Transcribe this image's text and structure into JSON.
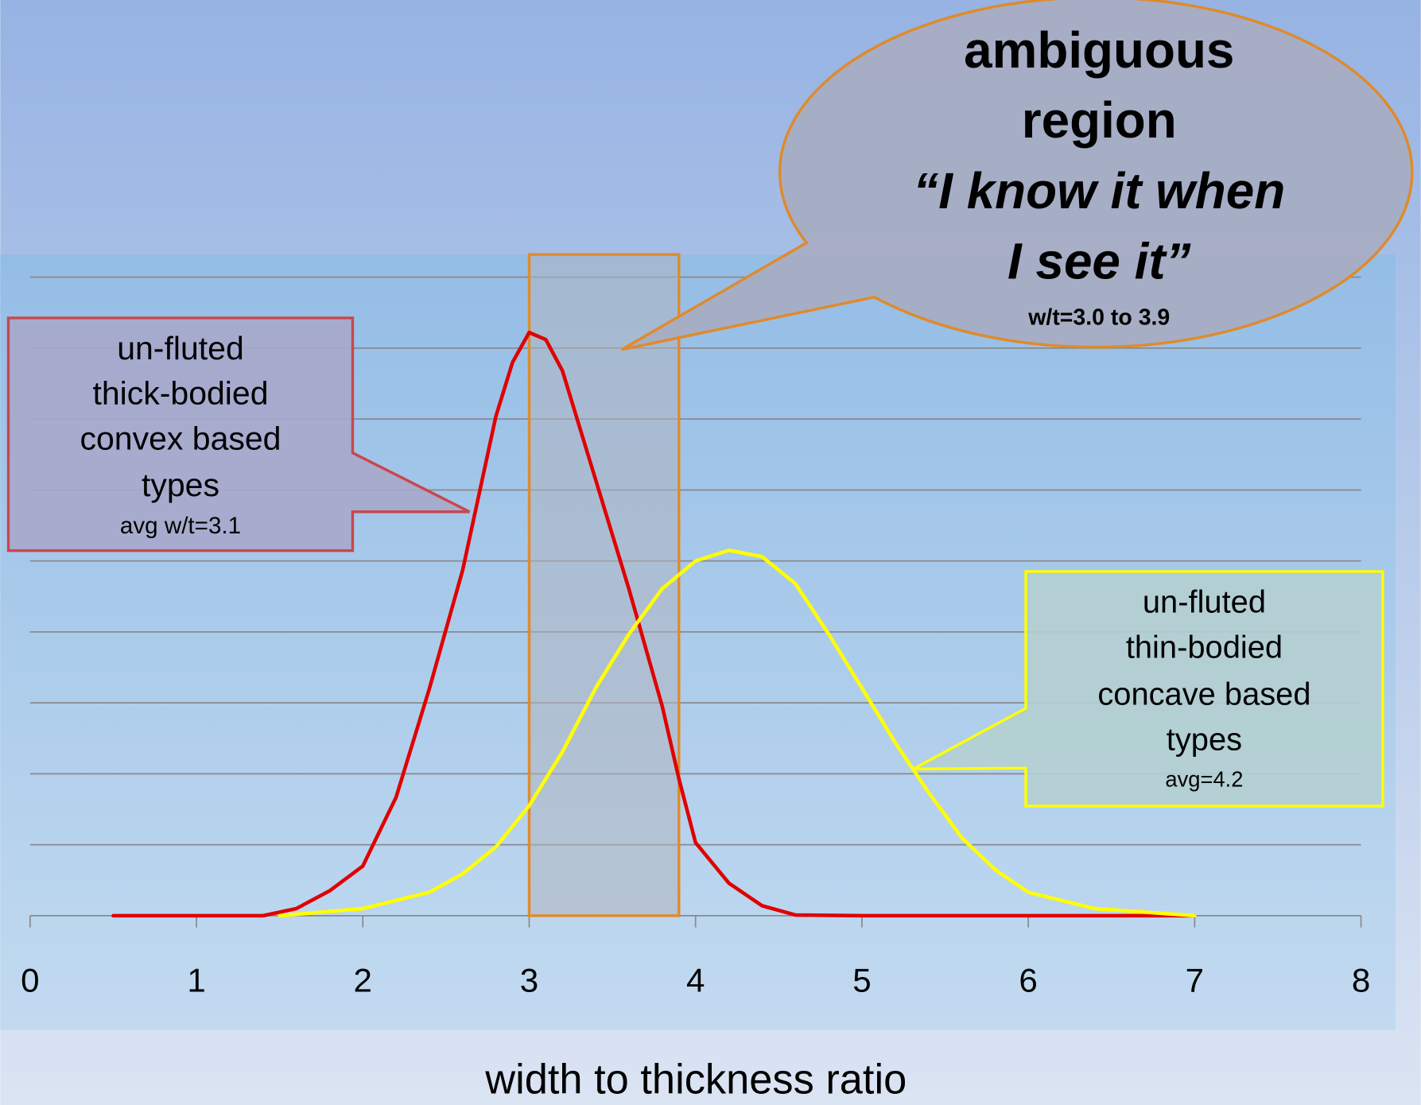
{
  "chart_data": {
    "type": "line",
    "xlabel": "width to thickness ratio",
    "xlim": [
      0,
      8
    ],
    "xticks": [
      0,
      1,
      2,
      3,
      4,
      5,
      6,
      7,
      8
    ],
    "ylim": [
      0,
      9
    ],
    "yticks": [
      0,
      1,
      2,
      3,
      4,
      5,
      6,
      7,
      8,
      9
    ],
    "grid": true,
    "series": [
      {
        "name": "un-fluted thick-bodied convex based types",
        "color": "#e00000",
        "x": [
          0.5,
          1.0,
          1.4,
          1.6,
          1.8,
          2.0,
          2.2,
          2.4,
          2.6,
          2.8,
          2.9,
          3.0,
          3.1,
          3.2,
          3.4,
          3.6,
          3.8,
          3.9,
          4.0,
          4.2,
          4.4,
          4.6,
          5.0,
          7.0
        ],
        "values": [
          0,
          0,
          0,
          0.1,
          0.35,
          0.7,
          1.67,
          3.2,
          4.87,
          7.04,
          7.8,
          8.22,
          8.12,
          7.68,
          6.14,
          4.6,
          2.95,
          1.93,
          1.03,
          0.46,
          0.14,
          0.01,
          0,
          0
        ]
      },
      {
        "name": "un-fluted thin-bodied concave based types",
        "color": "#ffff00",
        "x": [
          1.5,
          2.0,
          2.4,
          2.6,
          2.8,
          3.0,
          3.2,
          3.4,
          3.6,
          3.8,
          4.0,
          4.2,
          4.4,
          4.6,
          4.8,
          5.0,
          5.2,
          5.4,
          5.6,
          5.8,
          6.0,
          6.4,
          7.0
        ],
        "values": [
          0,
          0.1,
          0.33,
          0.59,
          0.97,
          1.55,
          2.31,
          3.21,
          3.97,
          4.61,
          5.0,
          5.15,
          5.06,
          4.68,
          3.97,
          3.21,
          2.44,
          1.74,
          1.1,
          0.65,
          0.33,
          0.1,
          0
        ]
      }
    ],
    "region": {
      "x": [
        3.0,
        3.9
      ],
      "color": "#e08a2a"
    },
    "annotations": {
      "ambiguous": [
        "ambiguous",
        "region",
        "“I know it when",
        "I see it”",
        "w/t=3.0 to 3.9"
      ],
      "thick": [
        "un-fluted",
        "thick-bodied",
        "convex based",
        "types",
        "avg w/t=3.1"
      ],
      "thin": [
        "un-fluted",
        "thin-bodied",
        "concave based",
        "types",
        "avg=4.2"
      ]
    }
  }
}
